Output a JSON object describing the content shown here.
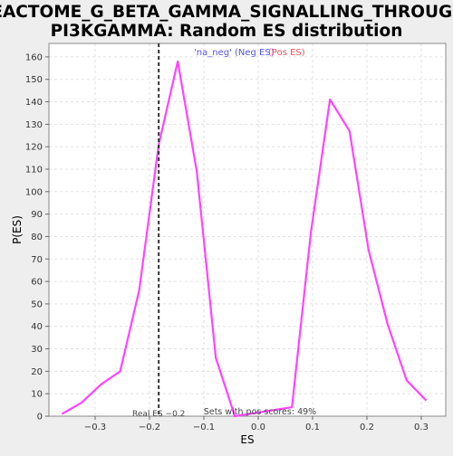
{
  "chart_data": {
    "type": "line",
    "title_line1": "REACTOME_G_BETA_GAMMA_SIGNALLING_THROUGH_",
    "title_line2": "PI3KGAMMA: Random ES distribution",
    "xlabel": "ES",
    "ylabel": "P(ES)",
    "xlim": [
      -0.385,
      0.345
    ],
    "ylim": [
      0,
      166
    ],
    "grid": true,
    "x_ticks": [
      -0.3,
      -0.2,
      -0.1,
      0.0,
      0.1,
      0.2,
      0.3
    ],
    "x_tick_labels": [
      "−0.3",
      "−0.2",
      "−0.1",
      "0.0",
      "0.1",
      "0.2",
      "0.3"
    ],
    "y_ticks": [
      0,
      10,
      20,
      30,
      40,
      50,
      60,
      70,
      80,
      90,
      100,
      110,
      120,
      130,
      140,
      150,
      160
    ],
    "y_tick_labels": [
      "0",
      "10",
      "20",
      "30",
      "40",
      "50",
      "60",
      "70",
      "80",
      "90",
      "100",
      "110",
      "120",
      "130",
      "140",
      "150",
      "160"
    ],
    "series": [
      {
        "color": "#ff44ff",
        "x": [
          -0.361,
          -0.325,
          -0.29,
          -0.254,
          -0.219,
          -0.183,
          -0.148,
          -0.113,
          -0.078,
          -0.043,
          0.062,
          0.097,
          0.132,
          0.168,
          0.203,
          0.238,
          0.273,
          0.309
        ],
        "y": [
          1,
          6,
          14,
          20,
          56,
          121,
          158,
          109,
          26,
          0,
          4,
          82,
          141,
          127,
          74,
          41,
          16,
          7
        ]
      }
    ],
    "real_es": {
      "x": -0.183,
      "label": "Real ES −0.2",
      "color": "#333333"
    },
    "sets_label": "Sets with pos scores: 49%",
    "legend": {
      "placement": "top-center",
      "items": [
        {
          "label": "'na_neg' (Neg ES)",
          "color": "#5555ee"
        },
        {
          "label": "(Pos ES)",
          "color": "#ee5555"
        }
      ]
    }
  }
}
